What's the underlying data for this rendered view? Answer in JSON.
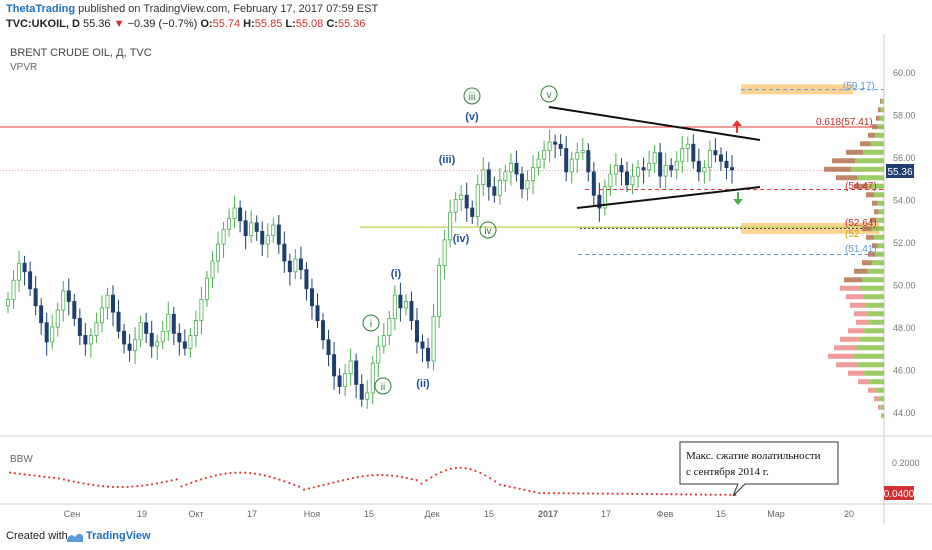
{
  "header": {
    "author": "ThetaTrading",
    "published_text": "published on TradingView.com, February 17, 2017 07:59 EST",
    "symbol": "TVC:UKOIL, D",
    "price": "55.36",
    "arrow": "▼",
    "change": "−0.39 (−0.7%)",
    "open_label": "O:",
    "open": "55.74",
    "high_label": "H:",
    "high": "55.85",
    "low_label": "L:",
    "low": "55.08",
    "close_label": "C:",
    "close": "55.36"
  },
  "chart_data": {
    "type": "candlestick",
    "title": "BRENT CRUDE OIL, Д, TVC",
    "indicator_main": "VPVR",
    "indicator_sub": "BBW",
    "y_ticks": [
      "60.00",
      "58.00",
      "56.00",
      "54.00",
      "52.00",
      "50.00",
      "48.00",
      "46.00",
      "44.00"
    ],
    "sub_ticks": [
      "0.2000"
    ],
    "ylim": [
      43,
      61.5
    ],
    "x_ticks": [
      "Сен",
      "19",
      "Окт",
      "17",
      "Ноя",
      "15",
      "Дек",
      "15",
      "2017",
      "17",
      "Фев",
      "15",
      "Мар",
      "20"
    ],
    "last_price_label": "55.36",
    "last_bbw_label": "0.0400",
    "wave_labels_green": [
      "iii",
      "v",
      "i",
      "ii",
      "iv"
    ],
    "wave_labels_blue": [
      "(v)",
      "(iii)",
      "(iv)",
      "(i)",
      "(ii)"
    ],
    "levels": [
      {
        "label": "(59.17)",
        "value": 59.17
      },
      {
        "label": "0.618(57.41)",
        "value": 57.41
      },
      {
        "label": "(54.47)",
        "value": 54.47
      },
      {
        "label": "(52.64)",
        "value": 52.64
      },
      {
        "label": "(52",
        "value": 52.2
      },
      {
        "label": "(51.41)",
        "value": 51.41
      }
    ],
    "annotation_line1": "Макс. сжатие волатильности",
    "annotation_line2": "с сентября 2014 г.",
    "colors": {
      "up": "#4caf50",
      "down": "#1e3f6e",
      "resistance": "#e53935",
      "support_green": "#c8d96b",
      "zone": "#ffcc80",
      "blue_dash": "#5b9bd5",
      "bbw": "#e53935"
    }
  },
  "footer": {
    "created_with": "Created with",
    "brand": "TradingView"
  }
}
